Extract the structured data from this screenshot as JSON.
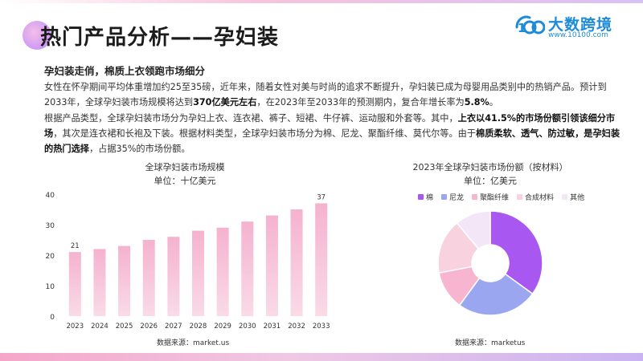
{
  "title": "热门产品分析——孕妇装",
  "logo": {
    "name": "大数跨境",
    "url": "www.10100.com"
  },
  "subheading": "孕妇装走俏，棉质上衣领跑市场细分",
  "paragraph1": {
    "a": "女性在怀孕期间平均体重增加约25至35磅，近年来，随着女性对美与时尚的追求不断提升，孕妇装已成为母婴用品类别中的热销产品。预计到2033年，全球孕妇装市场规模将达到",
    "b": "370亿美元左右",
    "c": "，在2023年至2033年的预测期内，复合年增长率为",
    "d": "5.8%",
    "e": "。"
  },
  "paragraph2": {
    "a": "根据产品类型，全球孕妇装市场分为孕妇上衣、连衣裙、裤子、短裙、牛仔裤、运动服和外套等。其中，",
    "b": "上衣以41.5%的市场份额引领该细分市场",
    "c": "，其次是连衣裙和长袍及下装。根据材料类型，全球孕妇装市场分为棉、尼龙、聚酯纤维、莫代尔等。由于",
    "d": "棉质柔软、透气、防过敏，是孕妇装的热门选择",
    "e": "，占据35%的市场份额。"
  },
  "chart_data": [
    {
      "type": "bar",
      "title": "全球孕妇装市场规模",
      "unit": "单位：十亿美元",
      "categories": [
        "2023",
        "2024",
        "2025",
        "2026",
        "2027",
        "2028",
        "2029",
        "2030",
        "2031",
        "2032",
        "2033"
      ],
      "values": [
        21,
        22,
        23,
        25,
        26,
        28,
        29,
        31,
        33,
        35,
        37
      ],
      "data_labels": {
        "first": "21",
        "last": "37"
      },
      "ylim": [
        0,
        40
      ],
      "yticks": [
        "0",
        "10",
        "20",
        "30",
        "40"
      ],
      "grid": false,
      "source": "数据来源：market.us",
      "colors": {
        "bar_top": "#f5b2cf",
        "bar_bottom": "#f9dbe7"
      }
    },
    {
      "type": "pie",
      "title": "2023年全球孕妇装市场份额（按材料）",
      "unit": "单位：亿美元",
      "categories": [
        "棉",
        "尼龙",
        "聚酯纤维",
        "合成材料",
        "其他"
      ],
      "values": [
        35,
        25,
        12,
        17,
        11
      ],
      "colors": [
        "#a858f0",
        "#9aa6f0",
        "#f7b5cf",
        "#f8d2de",
        "#f3e6f6"
      ],
      "legend": "top",
      "donut": true,
      "source": "数据来源：marketus"
    }
  ]
}
